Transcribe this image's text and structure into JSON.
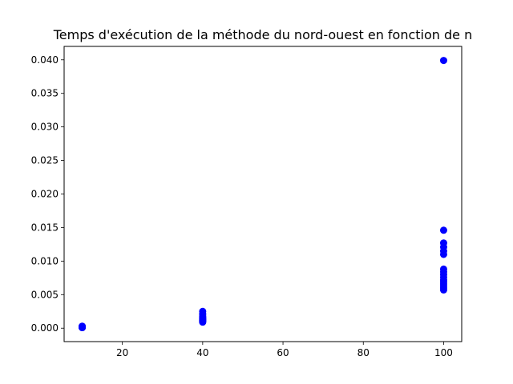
{
  "chart_data": {
    "type": "scatter",
    "title": "Temps d'exécution de la méthode du nord-ouest en fonction de n",
    "xlabel": "",
    "ylabel": "",
    "xlim": [
      5.5,
      104.5
    ],
    "ylim": [
      -0.002,
      0.042
    ],
    "grid": false,
    "x_ticks": [
      20,
      40,
      60,
      80,
      100
    ],
    "x_tick_labels": [
      "20",
      "40",
      "60",
      "80",
      "100"
    ],
    "y_ticks": [
      0.0,
      0.005,
      0.01,
      0.015,
      0.02,
      0.025,
      0.03,
      0.035,
      0.04
    ],
    "y_tick_labels": [
      "0.000",
      "0.005",
      "0.010",
      "0.015",
      "0.020",
      "0.025",
      "0.030",
      "0.035",
      "0.040"
    ],
    "marker_color": "#0000ff",
    "series": [
      {
        "points": [
          [
            10,
            0.0001
          ],
          [
            10,
            0.0001
          ],
          [
            10,
            0.0002
          ],
          [
            10,
            0.0002
          ],
          [
            10,
            0.0001
          ],
          [
            10,
            0.0003
          ],
          [
            10,
            0.0002
          ],
          [
            10,
            0.0001
          ],
          [
            40,
            0.0009
          ],
          [
            40,
            0.001
          ],
          [
            40,
            0.0011
          ],
          [
            40,
            0.0012
          ],
          [
            40,
            0.0013
          ],
          [
            40,
            0.0014
          ],
          [
            40,
            0.0015
          ],
          [
            40,
            0.0016
          ],
          [
            40,
            0.0018
          ],
          [
            40,
            0.0021
          ],
          [
            40,
            0.0025
          ],
          [
            100,
            0.0399
          ],
          [
            100,
            0.0146
          ],
          [
            100,
            0.0127
          ],
          [
            100,
            0.0121
          ],
          [
            100,
            0.0115
          ],
          [
            100,
            0.011
          ],
          [
            100,
            0.0088
          ],
          [
            100,
            0.0084
          ],
          [
            100,
            0.008
          ],
          [
            100,
            0.0076
          ],
          [
            100,
            0.0072
          ],
          [
            100,
            0.0069
          ],
          [
            100,
            0.0066
          ],
          [
            100,
            0.0063
          ],
          [
            100,
            0.006
          ],
          [
            100,
            0.0057
          ]
        ]
      }
    ]
  }
}
